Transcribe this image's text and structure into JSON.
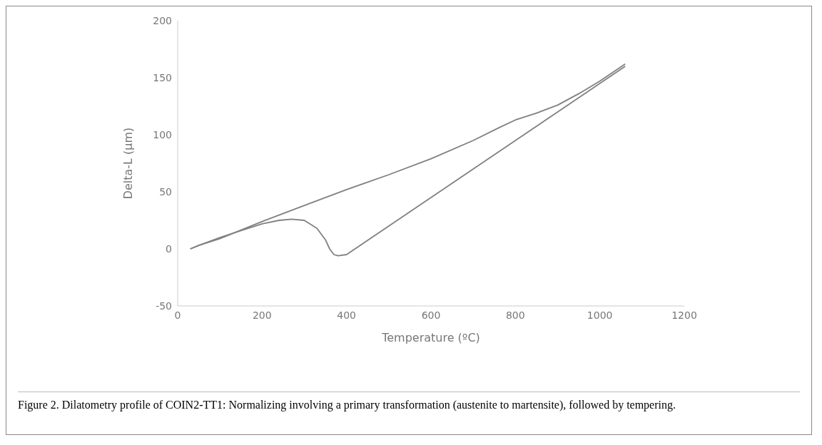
{
  "chart_data": {
    "type": "line",
    "xlabel": "Temperature (ºC)",
    "ylabel": "Delta-L (µm)",
    "xlim": [
      0,
      1200
    ],
    "xticks": [
      0,
      200,
      400,
      600,
      800,
      1000,
      1200
    ],
    "ylim": [
      -50,
      200
    ],
    "yticks": [
      -50,
      0,
      50,
      100,
      150,
      200
    ],
    "grid": false,
    "legend": false,
    "marker": "none",
    "line_style": "solid",
    "series": [
      {
        "color": "#808080",
        "x": [
          30,
          50,
          100,
          200,
          300,
          400,
          500,
          600,
          700,
          760,
          800,
          850,
          900,
          950,
          1000,
          1060
        ],
        "values": [
          0,
          3,
          9,
          24,
          38,
          52,
          65,
          79,
          95,
          106,
          113,
          119,
          126,
          136,
          147,
          162
        ]
      },
      {
        "color": "#808080",
        "x": [
          1060,
          1000,
          900,
          800,
          700,
          600,
          500,
          420,
          400,
          380,
          370,
          360,
          350,
          330,
          300,
          270,
          240,
          200,
          150,
          100,
          50,
          30
        ],
        "values": [
          160,
          145,
          120,
          95,
          70,
          45,
          20,
          0,
          -5,
          -6,
          -5,
          0,
          8,
          18,
          25,
          26,
          25,
          22,
          16,
          10,
          3,
          0
        ]
      }
    ],
    "annotations": [
      "Figure 2. Dilatometry profile of COIN2-TT1: Normalizing involving a primary transformation (austenite to martensite), followed by tempering."
    ]
  }
}
